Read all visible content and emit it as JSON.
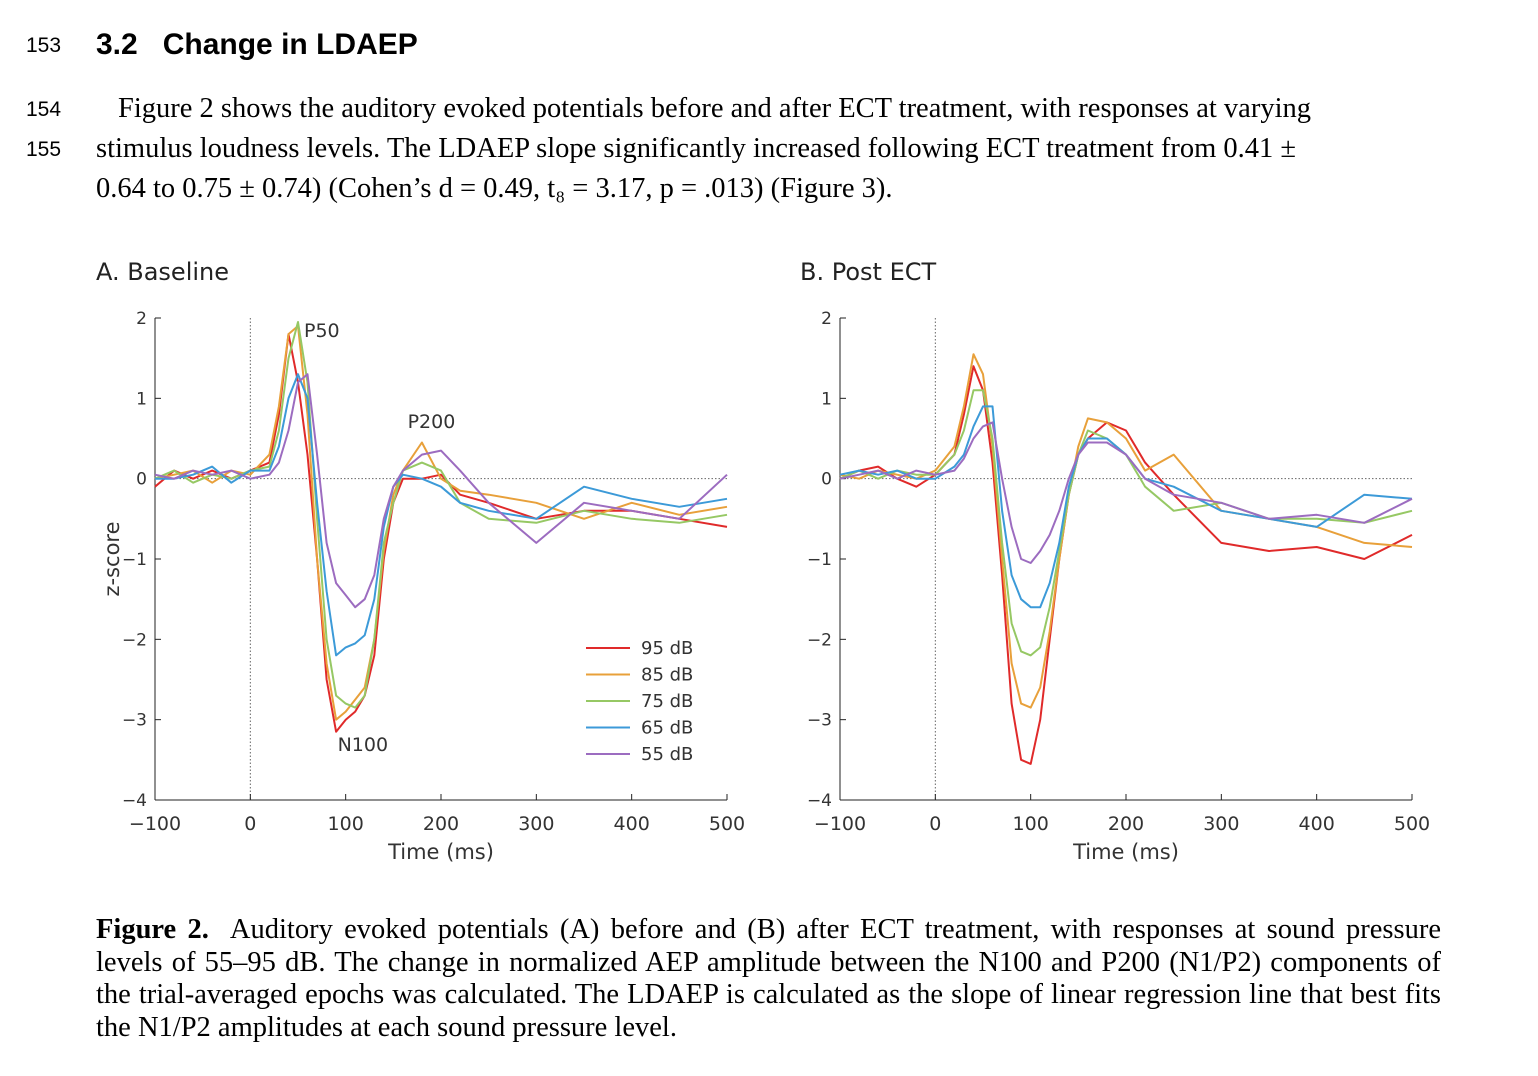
{
  "line_numbers": [
    "153",
    "154",
    "155"
  ],
  "section": {
    "number": "3.2",
    "title": "Change in LDAEP"
  },
  "paragraph": {
    "line1": "Figure 2 shows the auditory evoked potentials before and after ECT treatment, with responses at varying",
    "line2": "stimulus loudness levels. The LDAEP slope significantly increased following ECT treatment from 0.41 ±",
    "line3": "0.64 to 0.75 ± 0.74) (Cohen’s d = 0.49, t₈ = 3.17, p = .013) (Figure 3)."
  },
  "figure": {
    "panel_a_title": "A. Baseline",
    "panel_b_title": "B. Post ECT",
    "caption_label": "Figure 2.",
    "caption_text": "Auditory evoked potentials (A) before and (B) after ECT treatment, with responses at sound pressure levels of 55–95 dB. The change in normalized AEP amplitude between the N100 and P200 (N1/P2) components of the trial-averaged epochs was calculated. The LDAEP is calculated as the slope of linear regression line that best fits the N1/P2 amplitudes at each sound pressure level."
  },
  "chart_data": [
    {
      "type": "line",
      "title": "A. Baseline",
      "xlabel": "Time (ms)",
      "ylabel": "z-score",
      "xlim": [
        -100,
        500
      ],
      "ylim": [
        -4,
        2
      ],
      "xticks": [
        -100,
        0,
        100,
        200,
        300,
        400,
        500
      ],
      "yticks": [
        -4,
        -3,
        -2,
        -1,
        0,
        1,
        2
      ],
      "x": [
        -100,
        -80,
        -60,
        -40,
        -20,
        0,
        20,
        30,
        40,
        50,
        60,
        70,
        80,
        90,
        100,
        110,
        120,
        130,
        140,
        150,
        160,
        180,
        200,
        220,
        250,
        300,
        350,
        400,
        450,
        500
      ],
      "annotations": [
        {
          "text": "P50",
          "x": 75,
          "y": 1.85
        },
        {
          "text": "P200",
          "x": 190,
          "y": 0.72
        },
        {
          "text": "N100",
          "x": 118,
          "y": -3.3
        }
      ],
      "legend": "bottom-right",
      "series": [
        {
          "name": "95 dB",
          "color": "#e02a2a",
          "values": [
            -0.1,
            0.1,
            0.0,
            0.1,
            0.0,
            0.1,
            0.2,
            0.8,
            1.8,
            1.2,
            0.3,
            -1.0,
            -2.5,
            -3.15,
            -3.0,
            -2.9,
            -2.7,
            -2.2,
            -1.0,
            -0.3,
            0.0,
            0.0,
            0.05,
            -0.2,
            -0.3,
            -0.5,
            -0.4,
            -0.4,
            -0.5,
            -0.6
          ]
        },
        {
          "name": "85 dB",
          "color": "#e8a03a",
          "values": [
            0.0,
            0.05,
            0.1,
            -0.05,
            0.1,
            0.05,
            0.3,
            0.9,
            1.8,
            1.9,
            0.8,
            -1.0,
            -2.3,
            -3.0,
            -2.9,
            -2.75,
            -2.6,
            -2.0,
            -0.9,
            -0.2,
            0.1,
            0.45,
            0.0,
            -0.15,
            -0.2,
            -0.3,
            -0.5,
            -0.3,
            -0.45,
            -0.35
          ]
        },
        {
          "name": "75 dB",
          "color": "#96c864",
          "values": [
            0.0,
            0.1,
            -0.05,
            0.05,
            0.0,
            0.1,
            0.15,
            0.6,
            1.5,
            1.95,
            1.2,
            -0.5,
            -2.0,
            -2.7,
            -2.8,
            -2.85,
            -2.7,
            -2.0,
            -0.8,
            -0.3,
            0.1,
            0.2,
            0.1,
            -0.3,
            -0.5,
            -0.55,
            -0.4,
            -0.5,
            -0.55,
            -0.45
          ]
        },
        {
          "name": "65 dB",
          "color": "#3c9ad8",
          "values": [
            0.0,
            0.0,
            0.05,
            0.15,
            -0.05,
            0.1,
            0.1,
            0.4,
            1.0,
            1.3,
            1.0,
            -0.3,
            -1.4,
            -2.2,
            -2.1,
            -2.05,
            -1.95,
            -1.5,
            -0.6,
            -0.1,
            0.05,
            0.0,
            -0.1,
            -0.3,
            -0.4,
            -0.5,
            -0.1,
            -0.25,
            -0.35,
            -0.25
          ]
        },
        {
          "name": "55 dB",
          "color": "#9c6cc0",
          "values": [
            0.05,
            0.0,
            0.1,
            0.05,
            0.1,
            0.0,
            0.05,
            0.2,
            0.6,
            1.2,
            1.3,
            0.3,
            -0.8,
            -1.3,
            -1.45,
            -1.6,
            -1.5,
            -1.2,
            -0.5,
            -0.1,
            0.1,
            0.3,
            0.35,
            0.1,
            -0.3,
            -0.8,
            -0.3,
            -0.4,
            -0.5,
            0.05
          ]
        }
      ]
    },
    {
      "type": "line",
      "title": "B. Post ECT",
      "xlabel": "Time (ms)",
      "ylabel": "",
      "xlim": [
        -100,
        500
      ],
      "ylim": [
        -4,
        2
      ],
      "xticks": [
        -100,
        0,
        100,
        200,
        300,
        400,
        500
      ],
      "yticks": [
        -4,
        -3,
        -2,
        -1,
        0,
        1,
        2
      ],
      "x": [
        -100,
        -80,
        -60,
        -40,
        -20,
        0,
        20,
        30,
        40,
        50,
        60,
        70,
        80,
        90,
        100,
        110,
        120,
        130,
        140,
        150,
        160,
        180,
        200,
        220,
        250,
        300,
        350,
        400,
        450,
        500
      ],
      "series": [
        {
          "name": "95 dB",
          "color": "#e02a2a",
          "values": [
            0.0,
            0.1,
            0.15,
            0.0,
            -0.1,
            0.05,
            0.3,
            0.8,
            1.4,
            1.1,
            0.2,
            -1.2,
            -2.8,
            -3.5,
            -3.55,
            -3.0,
            -2.0,
            -1.0,
            -0.2,
            0.3,
            0.5,
            0.7,
            0.6,
            0.2,
            -0.2,
            -0.8,
            -0.9,
            -0.85,
            -1.0,
            -0.7
          ]
        },
        {
          "name": "85 dB",
          "color": "#e8a03a",
          "values": [
            0.05,
            0.0,
            0.1,
            0.05,
            0.0,
            0.1,
            0.4,
            0.9,
            1.55,
            1.3,
            0.4,
            -1.0,
            -2.3,
            -2.8,
            -2.85,
            -2.6,
            -1.9,
            -1.0,
            -0.2,
            0.4,
            0.75,
            0.7,
            0.5,
            0.1,
            0.3,
            -0.4,
            -0.5,
            -0.6,
            -0.8,
            -0.85
          ]
        },
        {
          "name": "75 dB",
          "color": "#96c864",
          "values": [
            0.0,
            0.1,
            0.0,
            0.1,
            0.05,
            0.05,
            0.3,
            0.6,
            1.1,
            1.1,
            0.5,
            -0.8,
            -1.8,
            -2.15,
            -2.2,
            -2.1,
            -1.6,
            -0.9,
            -0.2,
            0.3,
            0.6,
            0.5,
            0.3,
            -0.1,
            -0.4,
            -0.3,
            -0.5,
            -0.5,
            -0.55,
            -0.4
          ]
        },
        {
          "name": "65 dB",
          "color": "#3c9ad8",
          "values": [
            0.05,
            0.1,
            0.05,
            0.1,
            0.0,
            0.0,
            0.15,
            0.3,
            0.65,
            0.9,
            0.9,
            -0.4,
            -1.2,
            -1.5,
            -1.6,
            -1.6,
            -1.3,
            -0.8,
            -0.1,
            0.3,
            0.5,
            0.5,
            0.3,
            0.0,
            -0.1,
            -0.4,
            -0.5,
            -0.6,
            -0.2,
            -0.25
          ]
        },
        {
          "name": "55 dB",
          "color": "#9c6cc0",
          "values": [
            0.0,
            0.05,
            0.1,
            0.0,
            0.1,
            0.05,
            0.1,
            0.25,
            0.5,
            0.65,
            0.7,
            0.0,
            -0.6,
            -1.0,
            -1.05,
            -0.9,
            -0.7,
            -0.4,
            0.0,
            0.3,
            0.45,
            0.45,
            0.3,
            0.0,
            -0.2,
            -0.3,
            -0.5,
            -0.45,
            -0.55,
            -0.25
          ]
        }
      ]
    }
  ]
}
